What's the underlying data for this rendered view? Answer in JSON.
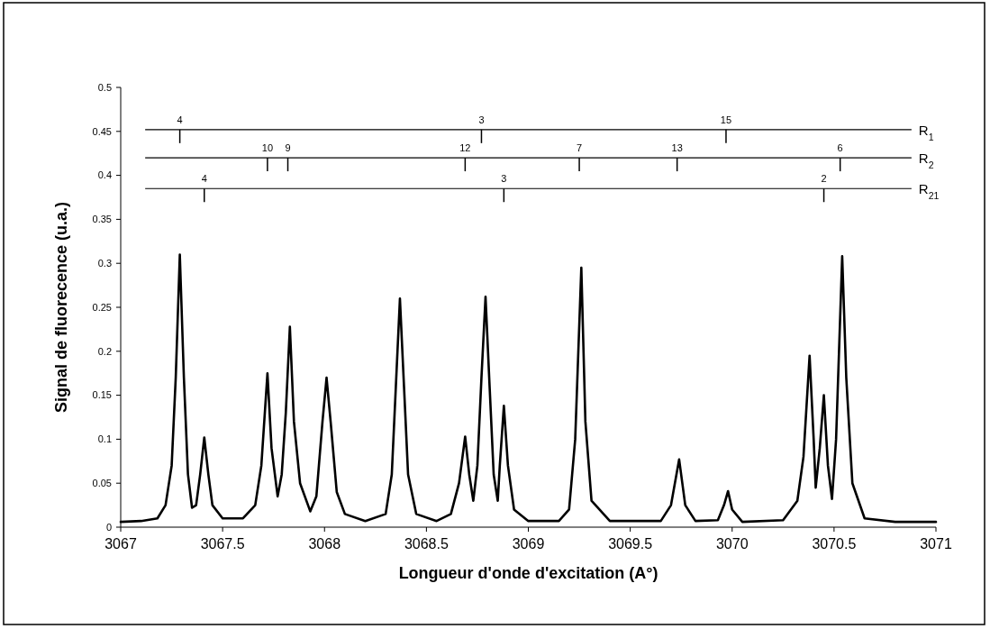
{
  "chart_data": {
    "type": "line",
    "xlabel": "Longueur d'onde d'excitation (A°)",
    "ylabel": "Signal de fluorecence (u.a.)",
    "xlim": [
      3067,
      3071
    ],
    "xticks": [
      3067,
      3067.5,
      3068,
      3068.5,
      3069,
      3069.5,
      3070,
      3070.5,
      3071
    ],
    "ylim": [
      0,
      0.5
    ],
    "yticks": [
      0,
      0.05,
      0.1,
      0.15,
      0.2,
      0.25,
      0.3,
      0.35,
      0.4,
      0.45,
      0.5
    ],
    "grid": false,
    "marker": "none",
    "line_style": "solid",
    "series": [
      {
        "color": "#000000",
        "x": [
          3067.0,
          3067.1,
          3067.18,
          3067.22,
          3067.25,
          3067.27,
          3067.29,
          3067.31,
          3067.33,
          3067.35,
          3067.37,
          3067.39,
          3067.41,
          3067.43,
          3067.45,
          3067.5,
          3067.6,
          3067.66,
          3067.69,
          3067.72,
          3067.74,
          3067.77,
          3067.79,
          3067.81,
          3067.83,
          3067.85,
          3067.88,
          3067.93,
          3067.96,
          3067.99,
          3068.01,
          3068.03,
          3068.06,
          3068.1,
          3068.2,
          3068.3,
          3068.33,
          3068.35,
          3068.37,
          3068.39,
          3068.41,
          3068.45,
          3068.55,
          3068.62,
          3068.66,
          3068.69,
          3068.71,
          3068.73,
          3068.75,
          3068.77,
          3068.79,
          3068.81,
          3068.83,
          3068.85,
          3068.86,
          3068.88,
          3068.9,
          3068.93,
          3069.0,
          3069.15,
          3069.2,
          3069.23,
          3069.26,
          3069.28,
          3069.31,
          3069.4,
          3069.65,
          3069.7,
          3069.74,
          3069.77,
          3069.82,
          3069.93,
          3069.96,
          3069.98,
          3070.0,
          3070.05,
          3070.25,
          3070.32,
          3070.35,
          3070.38,
          3070.4,
          3070.41,
          3070.43,
          3070.45,
          3070.47,
          3070.49,
          3070.51,
          3070.54,
          3070.56,
          3070.59,
          3070.65,
          3070.8,
          3071.0
        ],
        "values": [
          0.006,
          0.007,
          0.01,
          0.025,
          0.07,
          0.17,
          0.31,
          0.17,
          0.06,
          0.022,
          0.025,
          0.06,
          0.102,
          0.06,
          0.025,
          0.01,
          0.01,
          0.025,
          0.07,
          0.175,
          0.09,
          0.035,
          0.06,
          0.13,
          0.228,
          0.12,
          0.05,
          0.018,
          0.035,
          0.12,
          0.17,
          0.12,
          0.04,
          0.015,
          0.007,
          0.015,
          0.06,
          0.16,
          0.26,
          0.16,
          0.06,
          0.015,
          0.007,
          0.015,
          0.05,
          0.103,
          0.06,
          0.03,
          0.07,
          0.17,
          0.262,
          0.16,
          0.06,
          0.03,
          0.07,
          0.138,
          0.07,
          0.02,
          0.007,
          0.007,
          0.02,
          0.1,
          0.295,
          0.12,
          0.03,
          0.007,
          0.007,
          0.025,
          0.077,
          0.025,
          0.007,
          0.008,
          0.025,
          0.041,
          0.02,
          0.006,
          0.008,
          0.03,
          0.08,
          0.195,
          0.1,
          0.045,
          0.09,
          0.15,
          0.07,
          0.032,
          0.1,
          0.308,
          0.17,
          0.05,
          0.01,
          0.006,
          0.006
        ]
      }
    ],
    "ref_lines": [
      {
        "axis": "y",
        "value": 0.452,
        "label": "R$_{1}$"
      },
      {
        "axis": "y",
        "value": 0.42,
        "label": "R$_{2}$"
      },
      {
        "axis": "y",
        "value": 0.385,
        "label": "R$_{21}$"
      }
    ],
    "annotations": [
      {
        "text": "4",
        "x": 3067.29,
        "y": 0.452
      },
      {
        "text": "3",
        "x": 3068.77,
        "y": 0.452
      },
      {
        "text": "15",
        "x": 3069.97,
        "y": 0.452
      },
      {
        "text": "10",
        "x": 3067.72,
        "y": 0.42
      },
      {
        "text": "9",
        "x": 3067.82,
        "y": 0.42
      },
      {
        "text": "12",
        "x": 3068.69,
        "y": 0.42
      },
      {
        "text": "7",
        "x": 3069.25,
        "y": 0.42
      },
      {
        "text": "13",
        "x": 3069.73,
        "y": 0.42
      },
      {
        "text": "6",
        "x": 3070.53,
        "y": 0.42
      },
      {
        "text": "4",
        "x": 3067.41,
        "y": 0.385
      },
      {
        "text": "3",
        "x": 3068.88,
        "y": 0.385
      },
      {
        "text": "2",
        "x": 3070.45,
        "y": 0.385
      }
    ]
  }
}
